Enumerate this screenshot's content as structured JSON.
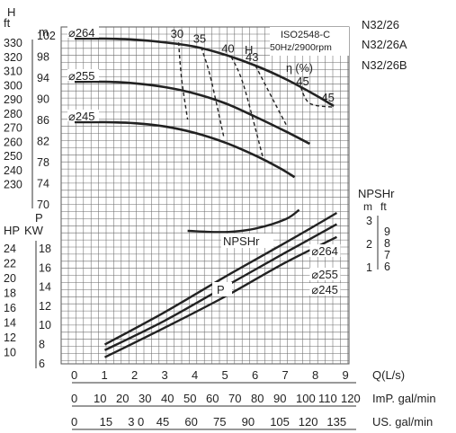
{
  "models": [
    "N32/26",
    "N32/26A",
    "N32/26B"
  ],
  "standard": "ISO2548-C",
  "speed": "50Hz/2900rpm",
  "head_axis": {
    "ft_unit": "ft",
    "m_unit": "m",
    "H_label": "H",
    "ft_ticks": [
      "330",
      "320",
      "310",
      "300",
      "290",
      "280",
      "270",
      "260",
      "250",
      "240",
      "230"
    ],
    "m_ticks": [
      "102",
      "98",
      "94",
      "90",
      "86",
      "82",
      "78",
      "74",
      "70"
    ]
  },
  "power_axis": {
    "P_label": "P",
    "hp_label": "HP",
    "kw_label": "KW",
    "hp_ticks": [
      "24",
      "22",
      "20",
      "18",
      "16",
      "14",
      "12",
      "10"
    ],
    "kw_ticks": [
      "18",
      "16",
      "14",
      "12",
      "10",
      "8",
      "6"
    ]
  },
  "npsh_axis": {
    "label": "NPSHr",
    "m_unit": "m",
    "ft_unit": "ft",
    "m_ticks": [
      "3",
      "2",
      "1"
    ],
    "ft_ticks": [
      "9",
      "8",
      "7",
      "6"
    ]
  },
  "x_axes": [
    {
      "label": "Q(L/s)",
      "ticks": [
        "0",
        "1",
        "2",
        "3",
        "4",
        "5",
        "6",
        "7",
        "8",
        "9"
      ]
    },
    {
      "label": "ImP. gal/min",
      "ticks": [
        "0",
        "10",
        "20",
        "30",
        "40",
        "50",
        "60",
        "70",
        "80",
        "90",
        "100",
        "110",
        "120"
      ]
    },
    {
      "label": "US. gal/min",
      "ticks": [
        "0",
        "15",
        "3 0",
        "45",
        "60",
        "75",
        "90",
        "105",
        "120",
        "135"
      ]
    }
  ],
  "curve_labels": {
    "H": "H",
    "eta": "η (%)",
    "npshr": "NPSHr",
    "P": "P"
  },
  "chart_data": {
    "type": "line",
    "x_unit": "Q (L/s)",
    "head_curves": [
      {
        "name": "⌀264",
        "points": [
          [
            0,
            101.5
          ],
          [
            1,
            101.5
          ],
          [
            2,
            101.3
          ],
          [
            3,
            100.8
          ],
          [
            4,
            100
          ],
          [
            5,
            98.5
          ],
          [
            6,
            96.5
          ],
          [
            7,
            94
          ],
          [
            8,
            91
          ],
          [
            8.6,
            89
          ]
        ]
      },
      {
        "name": "⌀255",
        "points": [
          [
            0,
            93.5
          ],
          [
            1,
            93.5
          ],
          [
            2,
            93.2
          ],
          [
            3,
            92.5
          ],
          [
            4,
            91.3
          ],
          [
            5,
            89.5
          ],
          [
            6,
            87
          ],
          [
            7,
            84.3
          ],
          [
            7.8,
            82
          ]
        ]
      },
      {
        "name": "⌀245",
        "points": [
          [
            0,
            86
          ],
          [
            1,
            86
          ],
          [
            2,
            85.8
          ],
          [
            3,
            85.2
          ],
          [
            4,
            84
          ],
          [
            5,
            82.2
          ],
          [
            6,
            79.8
          ],
          [
            6.8,
            77.5
          ],
          [
            7.3,
            75.8
          ]
        ]
      }
    ],
    "efficiency_isolines": [
      {
        "name": "30",
        "points": [
          [
            3.45,
            100.8
          ],
          [
            3.55,
            94
          ],
          [
            3.75,
            86.5
          ]
        ]
      },
      {
        "name": "35",
        "points": [
          [
            4.2,
            99.9
          ],
          [
            4.5,
            94.5
          ],
          [
            4.95,
            83.3
          ]
        ]
      },
      {
        "name": "40",
        "points": [
          [
            5.2,
            98.1
          ],
          [
            5.6,
            93
          ],
          [
            6.25,
            79.4
          ]
        ]
      },
      {
        "name": "43",
        "points": [
          [
            6.0,
            96.5
          ],
          [
            6.6,
            90
          ],
          [
            7.05,
            85.2
          ]
        ]
      },
      {
        "name": "45",
        "points": [
          [
            7.5,
            92.5
          ],
          [
            7.8,
            89.5
          ],
          [
            8.55,
            88.8
          ]
        ]
      }
    ],
    "npshr_curve": {
      "name": "NPSHr",
      "points": [
        [
          3.75,
          2.5
        ],
        [
          5.0,
          2.45
        ],
        [
          6.0,
          2.6
        ],
        [
          7.0,
          3.0
        ],
        [
          7.45,
          3.4
        ]
      ]
    },
    "power_curves_kw": [
      {
        "name": "⌀264",
        "points": [
          [
            1,
            7.3
          ],
          [
            3,
            9.6
          ],
          [
            5,
            12.1
          ],
          [
            7,
            14.5
          ],
          [
            8.7,
            16.6
          ]
        ]
      },
      {
        "name": "⌀255",
        "points": [
          [
            1,
            6.9
          ],
          [
            3,
            9.0
          ],
          [
            5,
            11.4
          ],
          [
            7,
            13.8
          ],
          [
            8.7,
            15.8
          ]
        ]
      },
      {
        "name": "⌀245",
        "points": [
          [
            1,
            6.4
          ],
          [
            3,
            8.5
          ],
          [
            5,
            10.7
          ],
          [
            7,
            13.1
          ],
          [
            8.7,
            14.9
          ]
        ]
      }
    ],
    "xlim": [
      0,
      9
    ],
    "head_ylim_m": [
      70,
      102
    ],
    "power_ylim_kw": [
      6,
      18
    ],
    "grid": true
  }
}
